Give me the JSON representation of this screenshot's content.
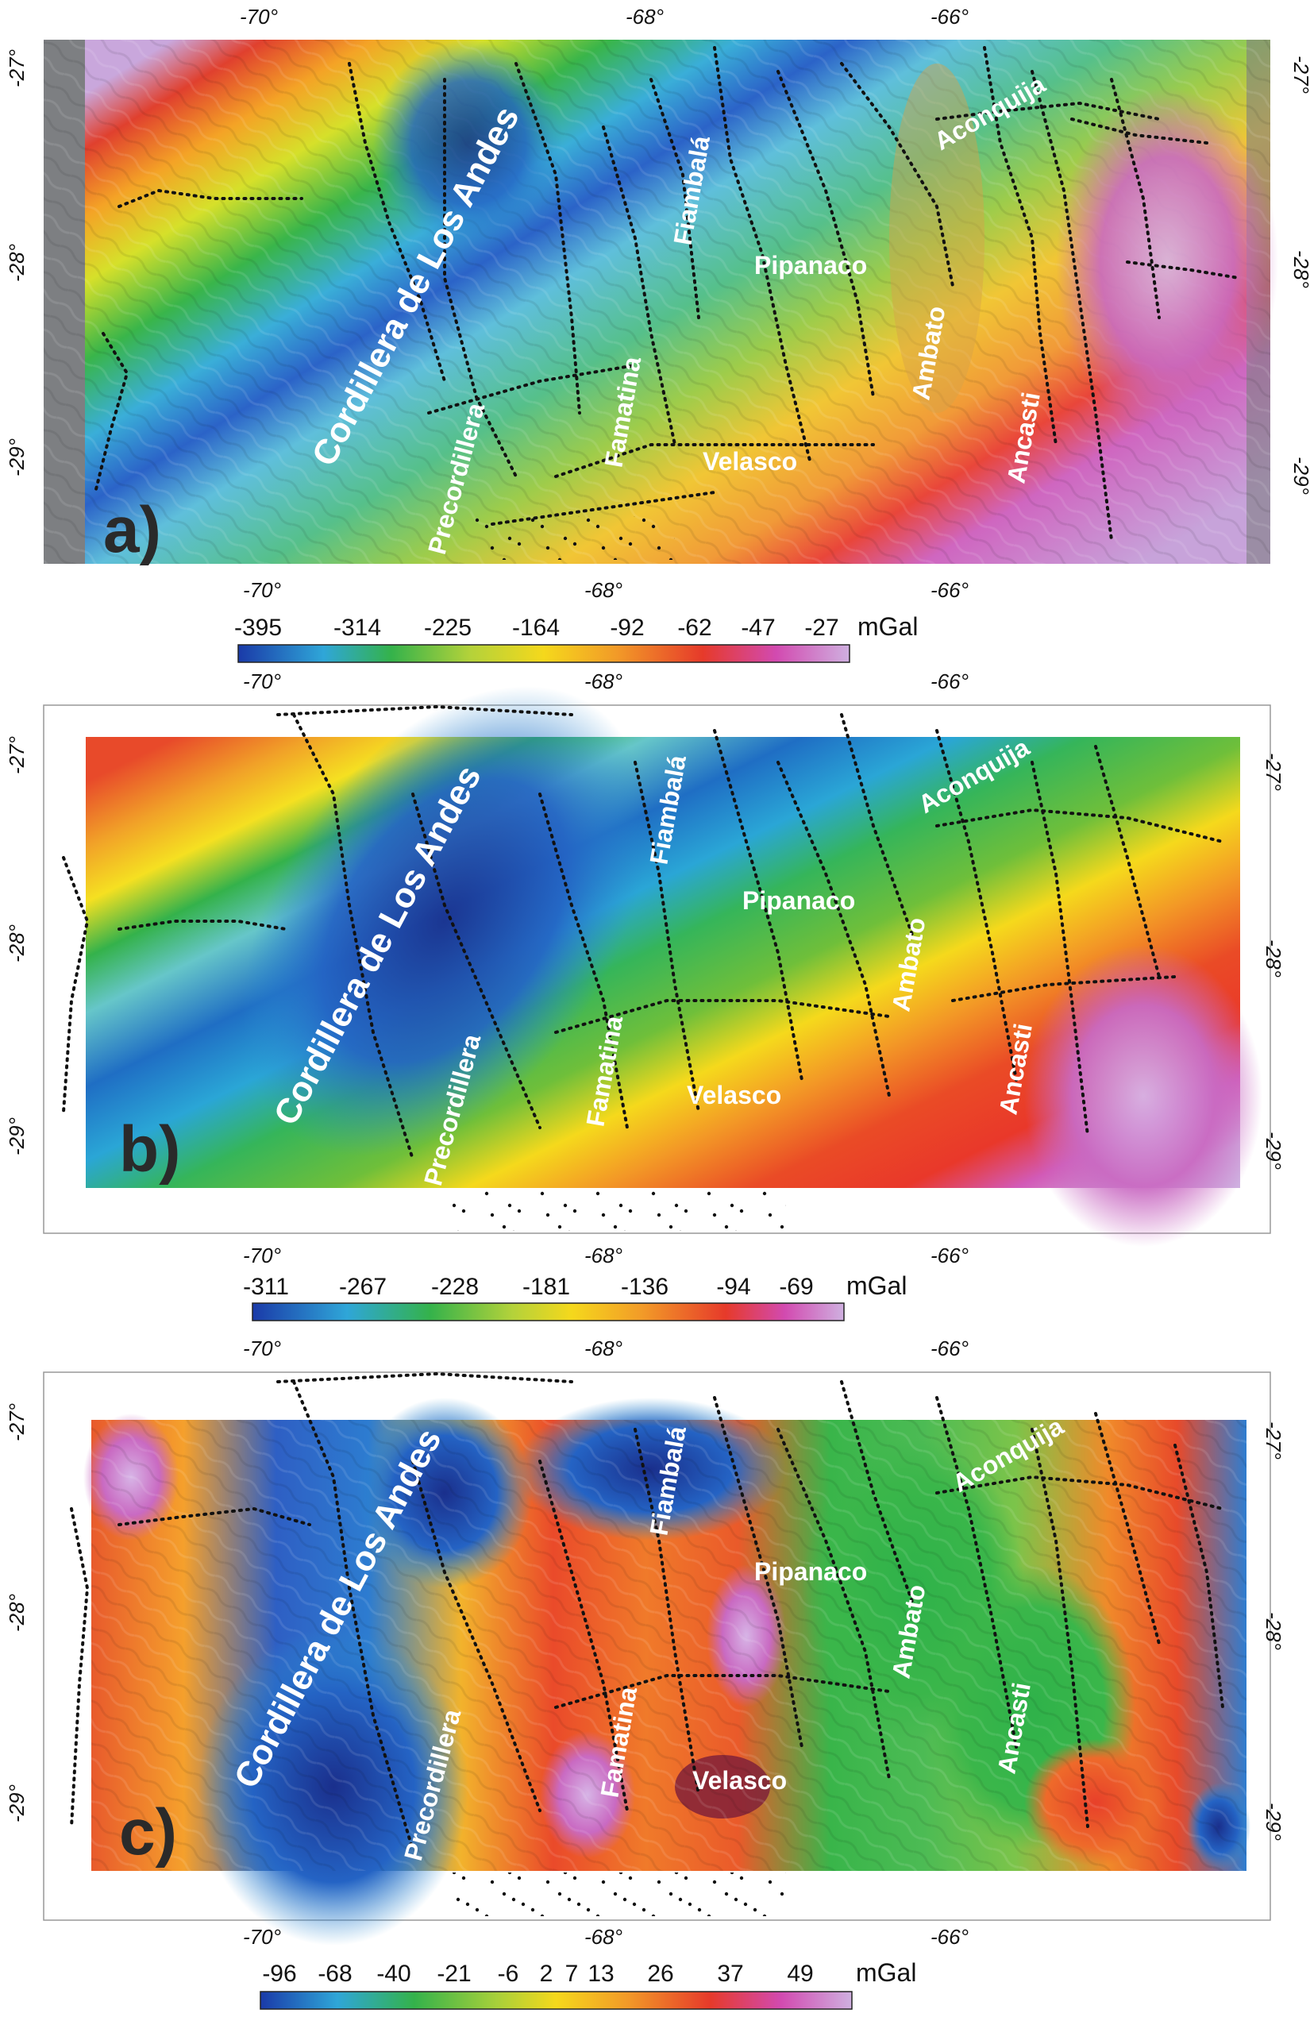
{
  "panels": [
    {
      "letter": "a)",
      "lon_labels": [
        "-70°",
        "-68°",
        "-66°"
      ],
      "lat_labels": [
        "-27°",
        "-28°",
        "-29°"
      ],
      "places": {
        "cordillera": "Cordillera de Los Andes",
        "precordillera": "Precordillera",
        "famatina": "Famatina",
        "fiambala": "Fiambalá",
        "pipanaco": "Pipanaco",
        "velasco": "Velasco",
        "ambato": "Ambato",
        "ancasti": "Ancasti",
        "aconquija": "Aconquija"
      },
      "colorbar": {
        "ticks": [
          "-395",
          "-314",
          "-225",
          "-164",
          "-92",
          "-62",
          "-47",
          "-27"
        ],
        "unit": "mGal"
      }
    },
    {
      "letter": "b)",
      "lon_labels": [
        "-70°",
        "-68°",
        "-66°"
      ],
      "lat_labels": [
        "-27°",
        "-28°",
        "-29°"
      ],
      "places": {
        "cordillera": "Cordillera de Los Andes",
        "precordillera": "Precordillera",
        "famatina": "Famatina",
        "fiambala": "Fiambalá",
        "pipanaco": "Pipanaco",
        "velasco": "Velasco",
        "ambato": "Ambato",
        "ancasti": "Ancasti",
        "aconquija": "Aconquija"
      },
      "colorbar": {
        "ticks": [
          "-311",
          "-267",
          "-228",
          "-181",
          "-136",
          "-94",
          "-69"
        ],
        "unit": "mGal"
      }
    },
    {
      "letter": "c)",
      "lon_labels": [
        "-70°",
        "-68°",
        "-66°"
      ],
      "lat_labels": [
        "-27°",
        "-28°",
        "-29°"
      ],
      "places": {
        "cordillera": "Cordillera de Los Andes",
        "precordillera": "Precordillera",
        "famatina": "Famatina",
        "fiambala": "Fiambalá",
        "pipanaco": "Pipanaco",
        "velasco": "Velasco",
        "ambato": "Ambato",
        "ancasti": "Ancasti",
        "aconquija": "Aconquija"
      },
      "colorbar": {
        "ticks": [
          "-96",
          "-68",
          "-40",
          "-21",
          "-6",
          "2",
          "7",
          "13",
          "26",
          "37",
          "49"
        ],
        "unit": "mGal"
      }
    }
  ],
  "colors": {
    "violet": "#c8a2d8",
    "magenta": "#d04fb0",
    "red": "#e8352a",
    "orange": "#f08a24",
    "yellow": "#f5e21d",
    "green": "#2db34a",
    "cyan": "#4fc7d0",
    "blue": "#1a5fc0",
    "navy": "#1a2f8c"
  }
}
